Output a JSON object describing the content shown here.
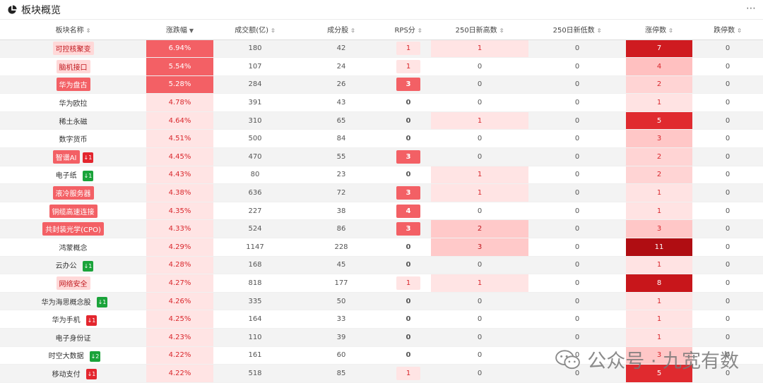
{
  "panel": {
    "title": "板块概览",
    "more": "⋯"
  },
  "columns": [
    "板块名称",
    "涨跌幅",
    "成交额(亿)",
    "成分股",
    "RPS分",
    "250日新高数",
    "250日新低数",
    "涨停数",
    "跌停数"
  ],
  "rows": [
    {
      "name": "可控核聚变",
      "badge": "",
      "pct": "6.94%",
      "amount": "180",
      "stocks": "42",
      "rps": "1",
      "high": "1",
      "low": "0",
      "zt": "7",
      "dt": "0"
    },
    {
      "name": "脑机接口",
      "badge": "",
      "pct": "5.54%",
      "amount": "107",
      "stocks": "24",
      "rps": "1",
      "high": "0",
      "low": "0",
      "zt": "4",
      "dt": "0"
    },
    {
      "name": "华为盘古",
      "badge": "",
      "pct": "5.28%",
      "amount": "284",
      "stocks": "26",
      "rps": "3",
      "high": "0",
      "low": "0",
      "zt": "2",
      "dt": "0"
    },
    {
      "name": "华为欧拉",
      "badge": "",
      "pct": "4.78%",
      "amount": "391",
      "stocks": "43",
      "rps": "0",
      "high": "0",
      "low": "0",
      "zt": "1",
      "dt": "0"
    },
    {
      "name": "稀土永磁",
      "badge": "",
      "pct": "4.64%",
      "amount": "310",
      "stocks": "65",
      "rps": "0",
      "high": "1",
      "low": "0",
      "zt": "5",
      "dt": "0"
    },
    {
      "name": "数字货币",
      "badge": "",
      "pct": "4.51%",
      "amount": "500",
      "stocks": "84",
      "rps": "0",
      "high": "0",
      "low": "0",
      "zt": "3",
      "dt": "0"
    },
    {
      "name": "智谱AI",
      "badge": "↓1",
      "pct": "4.45%",
      "amount": "470",
      "stocks": "55",
      "rps": "3",
      "high": "0",
      "low": "0",
      "zt": "2",
      "dt": "0"
    },
    {
      "name": "电子纸",
      "badge": "↓1",
      "pct": "4.43%",
      "amount": "80",
      "stocks": "23",
      "rps": "0",
      "high": "1",
      "low": "0",
      "zt": "2",
      "dt": "0"
    },
    {
      "name": "液冷服务器",
      "badge": "",
      "pct": "4.38%",
      "amount": "636",
      "stocks": "72",
      "rps": "3",
      "high": "1",
      "low": "0",
      "zt": "1",
      "dt": "0"
    },
    {
      "name": "铜缆高速连接",
      "badge": "",
      "pct": "4.35%",
      "amount": "227",
      "stocks": "38",
      "rps": "4",
      "high": "0",
      "low": "0",
      "zt": "1",
      "dt": "0"
    },
    {
      "name": "共封装光学(CPO)",
      "badge": "",
      "pct": "4.33%",
      "amount": "524",
      "stocks": "86",
      "rps": "3",
      "high": "2",
      "low": "0",
      "zt": "3",
      "dt": "0"
    },
    {
      "name": "鸿蒙概念",
      "badge": "",
      "pct": "4.29%",
      "amount": "1147",
      "stocks": "228",
      "rps": "0",
      "high": "3",
      "low": "0",
      "zt": "11",
      "dt": "0"
    },
    {
      "name": "云办公",
      "badge": "↓1",
      "pct": "4.28%",
      "amount": "168",
      "stocks": "45",
      "rps": "0",
      "high": "0",
      "low": "0",
      "zt": "1",
      "dt": "0"
    },
    {
      "name": "网络安全",
      "badge": "",
      "pct": "4.27%",
      "amount": "818",
      "stocks": "177",
      "rps": "1",
      "high": "1",
      "low": "0",
      "zt": "8",
      "dt": "0"
    },
    {
      "name": "华为海思概念股",
      "badge": "↓1",
      "pct": "4.26%",
      "amount": "335",
      "stocks": "50",
      "rps": "0",
      "high": "0",
      "low": "0",
      "zt": "1",
      "dt": "0"
    },
    {
      "name": "华为手机",
      "badge": "↓1",
      "pct": "4.25%",
      "amount": "164",
      "stocks": "33",
      "rps": "0",
      "high": "0",
      "low": "0",
      "zt": "1",
      "dt": "0"
    },
    {
      "name": "电子身份证",
      "badge": "",
      "pct": "4.23%",
      "amount": "110",
      "stocks": "39",
      "rps": "0",
      "high": "0",
      "low": "0",
      "zt": "1",
      "dt": "0"
    },
    {
      "name": "时空大数据",
      "badge": "↓2",
      "pct": "4.22%",
      "amount": "161",
      "stocks": "60",
      "rps": "0",
      "high": "0",
      "low": "0",
      "zt": "3",
      "dt": "0"
    },
    {
      "name": "移动支付",
      "badge": "↓1",
      "pct": "4.22%",
      "amount": "518",
      "stocks": "85",
      "rps": "1",
      "high": "0",
      "low": "0",
      "zt": "5",
      "dt": "0"
    }
  ],
  "watermark": "公众号 · 九宽有数",
  "colors": {
    "accent_red": "#f36065",
    "deep_red": "#b00d12",
    "badge_green": "#1aa33a"
  }
}
